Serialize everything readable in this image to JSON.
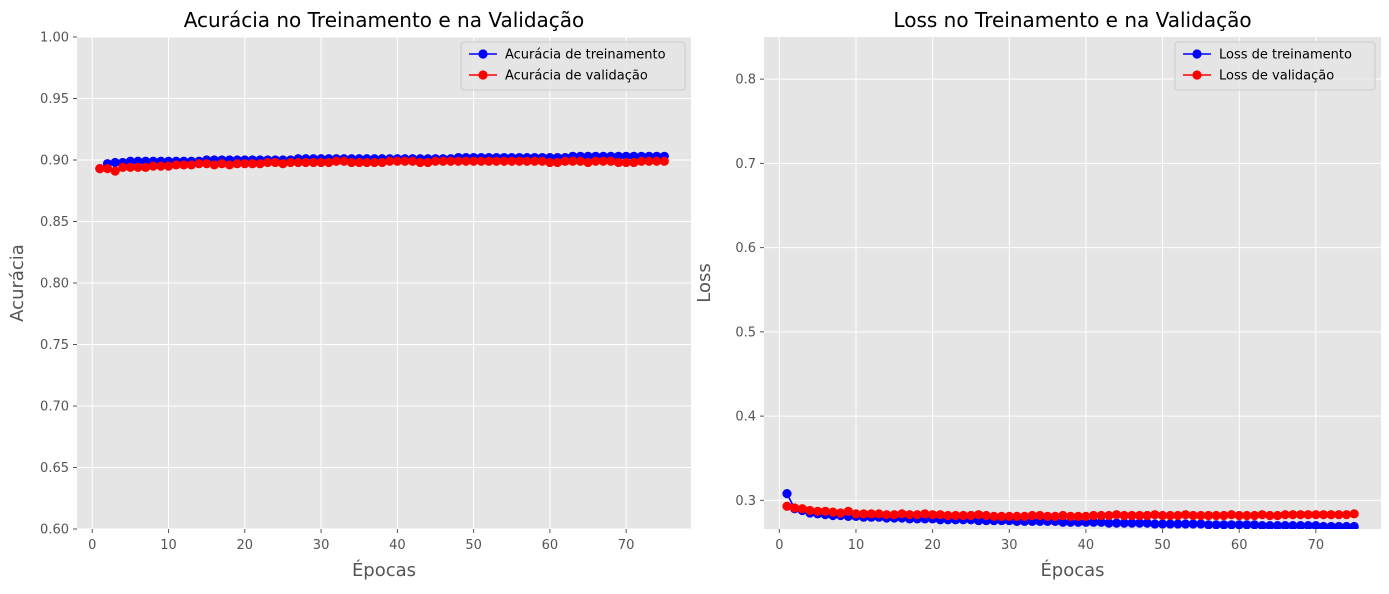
{
  "chart_data": [
    {
      "type": "line",
      "title": "Acurácia no Treinamento e na Validação",
      "xlabel": "Épocas",
      "ylabel": "Acurácia",
      "xlim": [
        -2,
        78.5
      ],
      "ylim": [
        0.6,
        1.0
      ],
      "xticks": [
        0,
        10,
        20,
        30,
        40,
        50,
        60,
        70
      ],
      "yticks": [
        0.6,
        0.65,
        0.7,
        0.75,
        0.8,
        0.85,
        0.9,
        0.95,
        1.0
      ],
      "ytick_labels": [
        "0.60",
        "0.65",
        "0.70",
        "0.75",
        "0.80",
        "0.85",
        "0.90",
        "0.95",
        "1.00"
      ],
      "grid": true,
      "legend_position": "top-right",
      "series": [
        {
          "name": "Acurácia de treinamento",
          "color": "#0000ff",
          "x": [
            1,
            2,
            3,
            4,
            5,
            6,
            7,
            8,
            9,
            10,
            11,
            12,
            13,
            14,
            15,
            16,
            17,
            18,
            19,
            20,
            21,
            22,
            23,
            24,
            25,
            26,
            27,
            28,
            29,
            30,
            31,
            32,
            33,
            34,
            35,
            36,
            37,
            38,
            39,
            40,
            41,
            42,
            43,
            44,
            45,
            46,
            47,
            48,
            49,
            50,
            51,
            52,
            53,
            54,
            55,
            56,
            57,
            58,
            59,
            60,
            61,
            62,
            63,
            64,
            65,
            66,
            67,
            68,
            69,
            70,
            71,
            72,
            73,
            74,
            75
          ],
          "values": [
            0.893,
            0.897,
            0.898,
            0.898,
            0.899,
            0.899,
            0.899,
            0.899,
            0.899,
            0.899,
            0.899,
            0.899,
            0.899,
            0.899,
            0.9,
            0.9,
            0.9,
            0.9,
            0.9,
            0.9,
            0.9,
            0.9,
            0.9,
            0.9,
            0.9,
            0.9,
            0.901,
            0.901,
            0.901,
            0.901,
            0.901,
            0.901,
            0.901,
            0.901,
            0.901,
            0.901,
            0.901,
            0.901,
            0.901,
            0.901,
            0.901,
            0.901,
            0.901,
            0.901,
            0.901,
            0.901,
            0.901,
            0.902,
            0.902,
            0.902,
            0.902,
            0.902,
            0.902,
            0.902,
            0.902,
            0.902,
            0.902,
            0.902,
            0.902,
            0.902,
            0.902,
            0.902,
            0.903,
            0.903,
            0.903,
            0.903,
            0.903,
            0.903,
            0.903,
            0.903,
            0.903,
            0.903,
            0.903,
            0.903,
            0.903
          ]
        },
        {
          "name": "Acurácia de validação",
          "color": "#ff0000",
          "x": [
            1,
            2,
            3,
            4,
            5,
            6,
            7,
            8,
            9,
            10,
            11,
            12,
            13,
            14,
            15,
            16,
            17,
            18,
            19,
            20,
            21,
            22,
            23,
            24,
            25,
            26,
            27,
            28,
            29,
            30,
            31,
            32,
            33,
            34,
            35,
            36,
            37,
            38,
            39,
            40,
            41,
            42,
            43,
            44,
            45,
            46,
            47,
            48,
            49,
            50,
            51,
            52,
            53,
            54,
            55,
            56,
            57,
            58,
            59,
            60,
            61,
            62,
            63,
            64,
            65,
            66,
            67,
            68,
            69,
            70,
            71,
            72,
            73,
            74,
            75
          ],
          "values": [
            0.893,
            0.893,
            0.891,
            0.894,
            0.894,
            0.894,
            0.894,
            0.895,
            0.895,
            0.895,
            0.896,
            0.896,
            0.896,
            0.897,
            0.897,
            0.896,
            0.897,
            0.896,
            0.897,
            0.897,
            0.897,
            0.897,
            0.898,
            0.898,
            0.897,
            0.898,
            0.898,
            0.898,
            0.898,
            0.898,
            0.898,
            0.899,
            0.899,
            0.898,
            0.898,
            0.898,
            0.898,
            0.898,
            0.899,
            0.899,
            0.899,
            0.899,
            0.898,
            0.898,
            0.899,
            0.899,
            0.899,
            0.899,
            0.899,
            0.899,
            0.899,
            0.899,
            0.899,
            0.899,
            0.899,
            0.899,
            0.899,
            0.899,
            0.899,
            0.898,
            0.898,
            0.899,
            0.899,
            0.899,
            0.898,
            0.899,
            0.899,
            0.899,
            0.898,
            0.898,
            0.898,
            0.899,
            0.899,
            0.899,
            0.899
          ]
        }
      ]
    },
    {
      "type": "line",
      "title": "Loss no Treinamento e na Validação",
      "xlabel": "Épocas",
      "ylabel": "Loss",
      "xlim": [
        -2,
        78.5
      ],
      "ylim": [
        0.266,
        0.85
      ],
      "xticks": [
        0,
        10,
        20,
        30,
        40,
        50,
        60,
        70
      ],
      "yticks": [
        0.3,
        0.4,
        0.5,
        0.6,
        0.7,
        0.8
      ],
      "ytick_labels": [
        "0.3",
        "0.4",
        "0.5",
        "0.6",
        "0.7",
        "0.8"
      ],
      "grid": true,
      "legend_position": "top-right",
      "series": [
        {
          "name": "Loss de treinamento",
          "color": "#0000ff",
          "x": [
            1,
            2,
            3,
            4,
            5,
            6,
            7,
            8,
            9,
            10,
            11,
            12,
            13,
            14,
            15,
            16,
            17,
            18,
            19,
            20,
            21,
            22,
            23,
            24,
            25,
            26,
            27,
            28,
            29,
            30,
            31,
            32,
            33,
            34,
            35,
            36,
            37,
            38,
            39,
            40,
            41,
            42,
            43,
            44,
            45,
            46,
            47,
            48,
            49,
            50,
            51,
            52,
            53,
            54,
            55,
            56,
            57,
            58,
            59,
            60,
            61,
            62,
            63,
            64,
            65,
            66,
            67,
            68,
            69,
            70,
            71,
            72,
            73,
            74,
            75
          ],
          "values": [
            0.308,
            0.29,
            0.288,
            0.285,
            0.284,
            0.283,
            0.282,
            0.282,
            0.281,
            0.281,
            0.28,
            0.28,
            0.28,
            0.279,
            0.279,
            0.279,
            0.278,
            0.278,
            0.278,
            0.278,
            0.277,
            0.277,
            0.277,
            0.277,
            0.277,
            0.276,
            0.276,
            0.276,
            0.276,
            0.276,
            0.275,
            0.275,
            0.275,
            0.275,
            0.275,
            0.275,
            0.274,
            0.274,
            0.274,
            0.274,
            0.274,
            0.274,
            0.273,
            0.273,
            0.273,
            0.273,
            0.273,
            0.273,
            0.272,
            0.272,
            0.272,
            0.272,
            0.272,
            0.272,
            0.272,
            0.271,
            0.271,
            0.271,
            0.271,
            0.271,
            0.271,
            0.271,
            0.27,
            0.27,
            0.27,
            0.27,
            0.27,
            0.27,
            0.27,
            0.27,
            0.269,
            0.269,
            0.269,
            0.269,
            0.269
          ]
        },
        {
          "name": "Loss de validação",
          "color": "#ff0000",
          "x": [
            1,
            2,
            3,
            4,
            5,
            6,
            7,
            8,
            9,
            10,
            11,
            12,
            13,
            14,
            15,
            16,
            17,
            18,
            19,
            20,
            21,
            22,
            23,
            24,
            25,
            26,
            27,
            28,
            29,
            30,
            31,
            32,
            33,
            34,
            35,
            36,
            37,
            38,
            39,
            40,
            41,
            42,
            43,
            44,
            45,
            46,
            47,
            48,
            49,
            50,
            51,
            52,
            53,
            54,
            55,
            56,
            57,
            58,
            59,
            60,
            61,
            62,
            63,
            64,
            65,
            66,
            67,
            68,
            69,
            70,
            71,
            72,
            73,
            74,
            75
          ],
          "values": [
            0.293,
            0.291,
            0.29,
            0.288,
            0.287,
            0.287,
            0.286,
            0.285,
            0.287,
            0.284,
            0.284,
            0.284,
            0.284,
            0.283,
            0.283,
            0.284,
            0.283,
            0.283,
            0.284,
            0.283,
            0.283,
            0.282,
            0.282,
            0.282,
            0.282,
            0.283,
            0.282,
            0.281,
            0.281,
            0.281,
            0.281,
            0.281,
            0.282,
            0.282,
            0.281,
            0.281,
            0.282,
            0.281,
            0.281,
            0.281,
            0.282,
            0.282,
            0.282,
            0.283,
            0.282,
            0.282,
            0.282,
            0.282,
            0.283,
            0.282,
            0.282,
            0.282,
            0.283,
            0.282,
            0.282,
            0.282,
            0.282,
            0.282,
            0.283,
            0.282,
            0.282,
            0.282,
            0.283,
            0.282,
            0.282,
            0.283,
            0.283,
            0.283,
            0.283,
            0.283,
            0.283,
            0.283,
            0.283,
            0.283,
            0.284
          ]
        }
      ]
    }
  ]
}
